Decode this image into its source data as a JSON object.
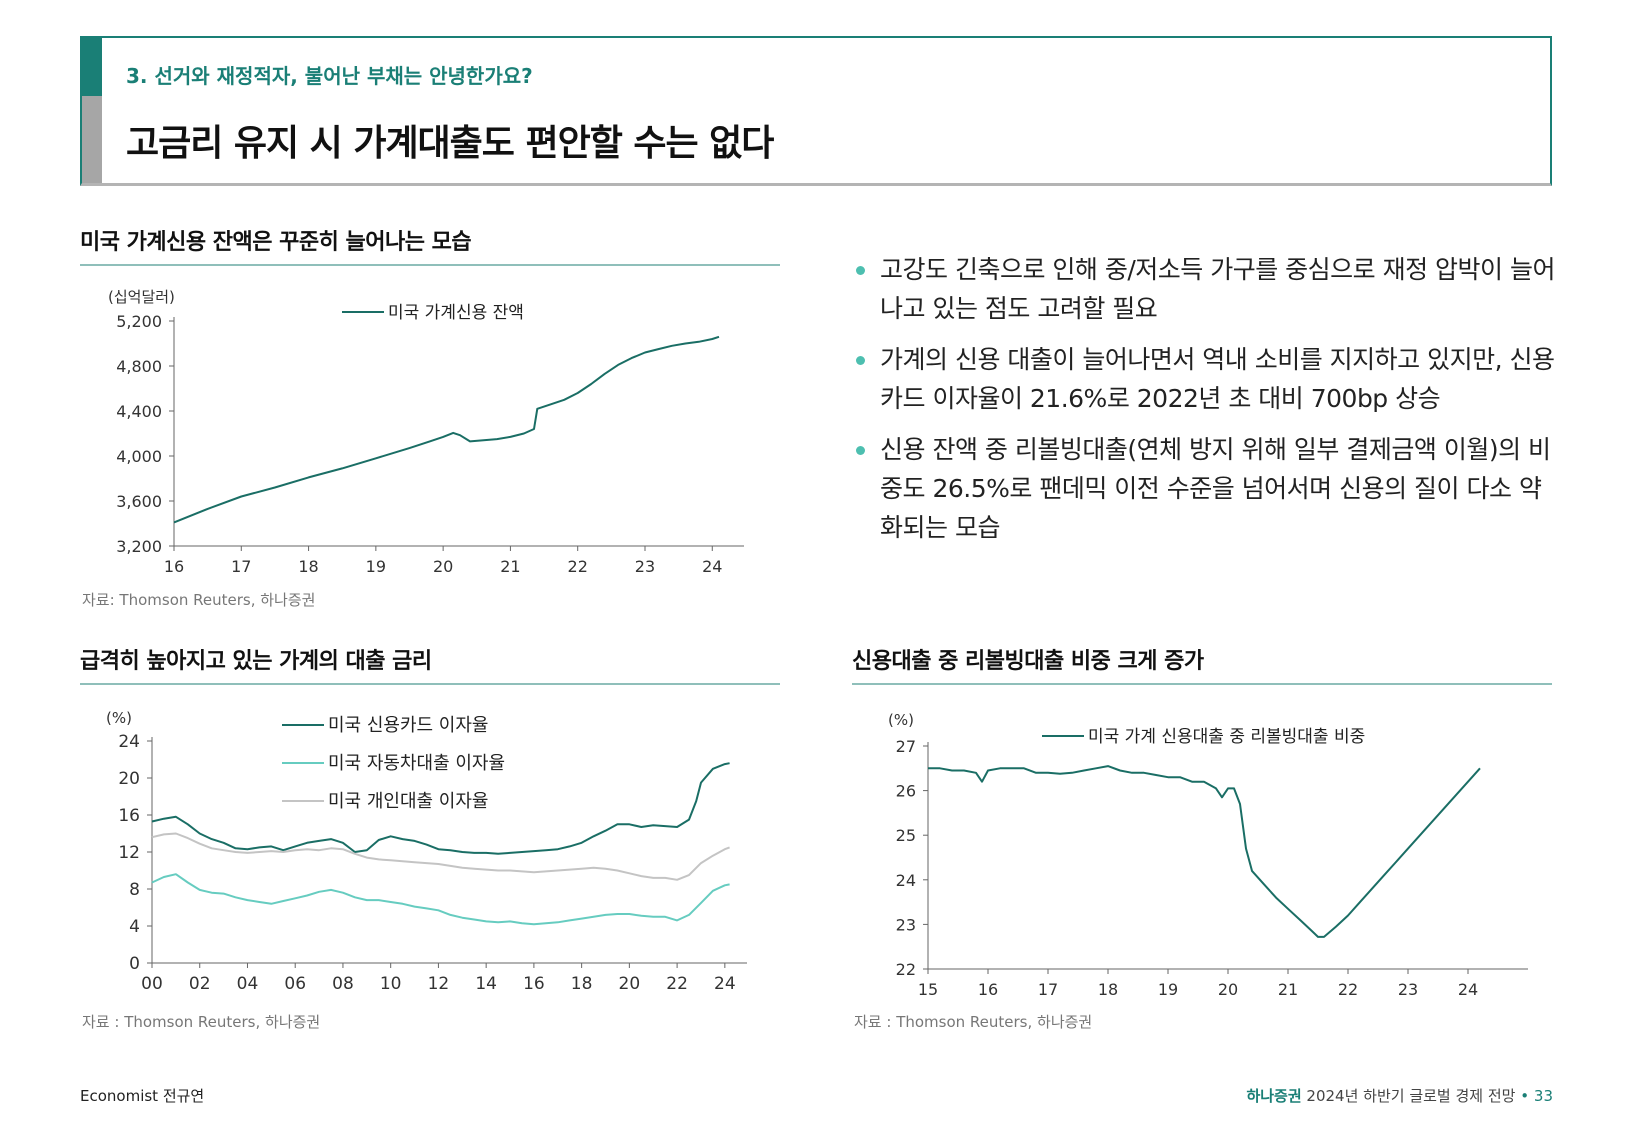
{
  "header": {
    "subtitle": "3. 선거와 재정적자, 불어난 부채는 안녕한가요?",
    "title": "고금리 유지 시 가계대출도 편안할 수는 없다"
  },
  "colors": {
    "dark": "#1a6e65",
    "light": "#66ccc0",
    "gray": "#c4c4c4",
    "accent": "#1a7f76"
  },
  "section1": {
    "title": "미국 가계신용 잔액은 꾸준히 늘어나는 모습",
    "source": "자료: Thomson Reuters, 하나증권"
  },
  "section2": {
    "title": "급격히 높아지고 있는 가계의 대출 금리",
    "source": "자료 : Thomson Reuters, 하나증권"
  },
  "section3": {
    "title": "신용대출 중 리볼빙대출 비중 크게 증가",
    "source": "자료 : Thomson Reuters, 하나증권"
  },
  "bullets": [
    "고강도 긴축으로 인해 중/저소득 가구를 중심으로 재정 압박이 늘어나고 있는 점도 고려할 필요",
    "가계의 신용 대출이 늘어나면서 역내 소비를 지지하고 있지만, 신용카드 이자율이 21.6%로 2022년 초 대비 700bp 상승",
    "신용 잔액 중 리볼빙대출(연체 방지 위해 일부 결제금액 이월)의 비중도 26.5%로 팬데믹 이전 수준을 넘어서며 신용의 질이 다소 약화되는 모습"
  ],
  "chart_data": [
    {
      "type": "line",
      "title": "미국 가계신용 잔액은 꾸준히 늘어나는 모습",
      "unit": "(십억달러)",
      "xlim": [
        16,
        24.1
      ],
      "ylim": [
        3200,
        5200
      ],
      "xticks": [
        "16",
        "17",
        "18",
        "19",
        "20",
        "21",
        "22",
        "23",
        "24"
      ],
      "yticks": [
        "3,200",
        "3,600",
        "4,000",
        "4,400",
        "4,800",
        "5,200"
      ],
      "series": [
        {
          "name": "미국 가계신용 잔액",
          "color": "dark",
          "x": [
            16.0,
            16.5,
            17.0,
            17.5,
            18.0,
            18.5,
            19.0,
            19.5,
            19.8,
            20.0,
            20.15,
            20.25,
            20.4,
            20.6,
            20.8,
            21.0,
            21.2,
            21.35,
            21.4,
            21.6,
            21.8,
            22.0,
            22.2,
            22.4,
            22.6,
            22.8,
            23.0,
            23.2,
            23.4,
            23.6,
            23.8,
            24.0,
            24.1
          ],
          "y": [
            3410,
            3530,
            3640,
            3720,
            3810,
            3890,
            3980,
            4070,
            4130,
            4170,
            4205,
            4185,
            4130,
            4140,
            4150,
            4170,
            4200,
            4240,
            4420,
            4460,
            4500,
            4560,
            4640,
            4730,
            4810,
            4870,
            4920,
            4950,
            4980,
            5000,
            5015,
            5040,
            5060
          ]
        }
      ]
    },
    {
      "type": "line",
      "title": "급격히 높아지고 있는 가계의 대출 금리",
      "unit": "(%)",
      "xlim": [
        0,
        24.3
      ],
      "ylim": [
        0,
        24
      ],
      "xticks": [
        "00",
        "02",
        "04",
        "06",
        "08",
        "10",
        "12",
        "14",
        "16",
        "18",
        "20",
        "22",
        "24"
      ],
      "yticks": [
        "0",
        "4",
        "8",
        "12",
        "16",
        "20",
        "24"
      ],
      "series": [
        {
          "name": "미국 신용카드 이자율",
          "color": "dark",
          "x": [
            0,
            0.5,
            1,
            1.5,
            2,
            2.5,
            3,
            3.5,
            4,
            4.5,
            5,
            5.5,
            6,
            6.5,
            7,
            7.5,
            8,
            8.5,
            9,
            9.5,
            10,
            10.5,
            11,
            11.5,
            12,
            12.5,
            13,
            13.5,
            14,
            14.5,
            15,
            15.5,
            16,
            16.5,
            17,
            17.5,
            18,
            18.5,
            19,
            19.5,
            20,
            20.5,
            21,
            21.5,
            22,
            22.5,
            22.8,
            23,
            23.5,
            24,
            24.2
          ],
          "y": [
            15.3,
            15.6,
            15.8,
            15.0,
            14.0,
            13.4,
            13.0,
            12.4,
            12.3,
            12.5,
            12.6,
            12.2,
            12.6,
            13.0,
            13.2,
            13.4,
            13.0,
            12.0,
            12.2,
            13.3,
            13.7,
            13.4,
            13.2,
            12.8,
            12.3,
            12.2,
            12.0,
            11.9,
            11.9,
            11.8,
            11.9,
            12.0,
            12.1,
            12.2,
            12.3,
            12.6,
            13.0,
            13.7,
            14.3,
            15.0,
            15.0,
            14.7,
            14.9,
            14.8,
            14.7,
            15.5,
            17.5,
            19.5,
            21.0,
            21.5,
            21.6
          ]
        },
        {
          "name": "미국 자동차대출 이자율",
          "color": "light",
          "x": [
            0,
            0.5,
            1,
            1.5,
            2,
            2.5,
            3,
            3.5,
            4,
            4.5,
            5,
            5.5,
            6,
            6.5,
            7,
            7.5,
            8,
            8.5,
            9,
            9.5,
            10,
            10.5,
            11,
            11.5,
            12,
            12.5,
            13,
            13.5,
            14,
            14.5,
            15,
            15.5,
            16,
            16.5,
            17,
            17.5,
            18,
            18.5,
            19,
            19.5,
            20,
            20.5,
            21,
            21.5,
            22,
            22.5,
            23,
            23.5,
            24,
            24.2
          ],
          "y": [
            8.7,
            9.3,
            9.6,
            8.7,
            7.9,
            7.6,
            7.5,
            7.1,
            6.8,
            6.6,
            6.4,
            6.7,
            7.0,
            7.3,
            7.7,
            7.9,
            7.6,
            7.1,
            6.8,
            6.8,
            6.6,
            6.4,
            6.1,
            5.9,
            5.7,
            5.2,
            4.9,
            4.7,
            4.5,
            4.4,
            4.5,
            4.3,
            4.2,
            4.3,
            4.4,
            4.6,
            4.8,
            5.0,
            5.2,
            5.3,
            5.3,
            5.1,
            5.0,
            5.0,
            4.6,
            5.2,
            6.5,
            7.8,
            8.4,
            8.5
          ]
        },
        {
          "name": "미국 개인대출 이자율",
          "color": "gray",
          "x": [
            0,
            0.5,
            1,
            1.5,
            2,
            2.5,
            3,
            3.5,
            4,
            4.5,
            5,
            5.5,
            6,
            6.5,
            7,
            7.5,
            8,
            8.5,
            9,
            9.5,
            10,
            10.5,
            11,
            11.5,
            12,
            12.5,
            13,
            13.5,
            14,
            14.5,
            15,
            15.5,
            16,
            16.5,
            17,
            17.5,
            18,
            18.5,
            19,
            19.5,
            20,
            20.5,
            21,
            21.5,
            22,
            22.5,
            23,
            23.5,
            24,
            24.2
          ],
          "y": [
            13.6,
            13.9,
            14.0,
            13.5,
            12.9,
            12.4,
            12.2,
            12.0,
            11.9,
            12.0,
            12.1,
            12.0,
            12.2,
            12.3,
            12.2,
            12.4,
            12.3,
            11.8,
            11.4,
            11.2,
            11.1,
            11.0,
            10.9,
            10.8,
            10.7,
            10.5,
            10.3,
            10.2,
            10.1,
            10.0,
            10.0,
            9.9,
            9.8,
            9.9,
            10.0,
            10.1,
            10.2,
            10.3,
            10.2,
            10.0,
            9.7,
            9.4,
            9.2,
            9.2,
            9.0,
            9.5,
            10.8,
            11.6,
            12.3,
            12.5
          ]
        }
      ]
    },
    {
      "type": "line",
      "title": "신용대출 중 리볼빙대출 비중 크게 증가",
      "unit": "(%)",
      "xlim": [
        15,
        25
      ],
      "ylim": [
        22,
        27
      ],
      "xticks": [
        "15",
        "16",
        "17",
        "18",
        "19",
        "20",
        "21",
        "22",
        "23",
        "24"
      ],
      "yticks": [
        "22",
        "23",
        "24",
        "25",
        "26",
        "27"
      ],
      "series": [
        {
          "name": "미국 가계 신용대출 중 리볼빙대출 비중",
          "color": "dark",
          "x": [
            15.0,
            15.2,
            15.4,
            15.6,
            15.8,
            15.9,
            16.0,
            16.2,
            16.4,
            16.6,
            16.8,
            17.0,
            17.2,
            17.4,
            17.6,
            17.8,
            18.0,
            18.2,
            18.4,
            18.6,
            18.8,
            19.0,
            19.2,
            19.4,
            19.6,
            19.8,
            19.9,
            20.0,
            20.1,
            20.2,
            20.3,
            20.4,
            20.6,
            20.8,
            21.0,
            21.2,
            21.4,
            21.5,
            21.6,
            21.8,
            22.0,
            22.2,
            22.4,
            22.6,
            22.8,
            23.0,
            23.2,
            23.4,
            23.6,
            23.8,
            24.0,
            24.2
          ],
          "y": [
            26.5,
            26.5,
            26.45,
            26.45,
            26.4,
            26.2,
            26.45,
            26.5,
            26.5,
            26.5,
            26.4,
            26.4,
            26.38,
            26.4,
            26.45,
            26.5,
            26.55,
            26.45,
            26.4,
            26.4,
            26.35,
            26.3,
            26.3,
            26.2,
            26.2,
            26.05,
            25.85,
            26.05,
            26.05,
            25.7,
            24.7,
            24.2,
            23.9,
            23.6,
            23.35,
            23.1,
            22.85,
            22.72,
            22.72,
            22.95,
            23.2,
            23.5,
            23.8,
            24.1,
            24.4,
            24.7,
            25.0,
            25.3,
            25.6,
            25.9,
            26.2,
            26.5
          ]
        }
      ]
    }
  ],
  "footer": {
    "left": "Economist 전규연",
    "brand": "하나증권",
    "report": "2024년 하반기 글로벌 경제 전망",
    "sep": "•",
    "page": "33"
  }
}
